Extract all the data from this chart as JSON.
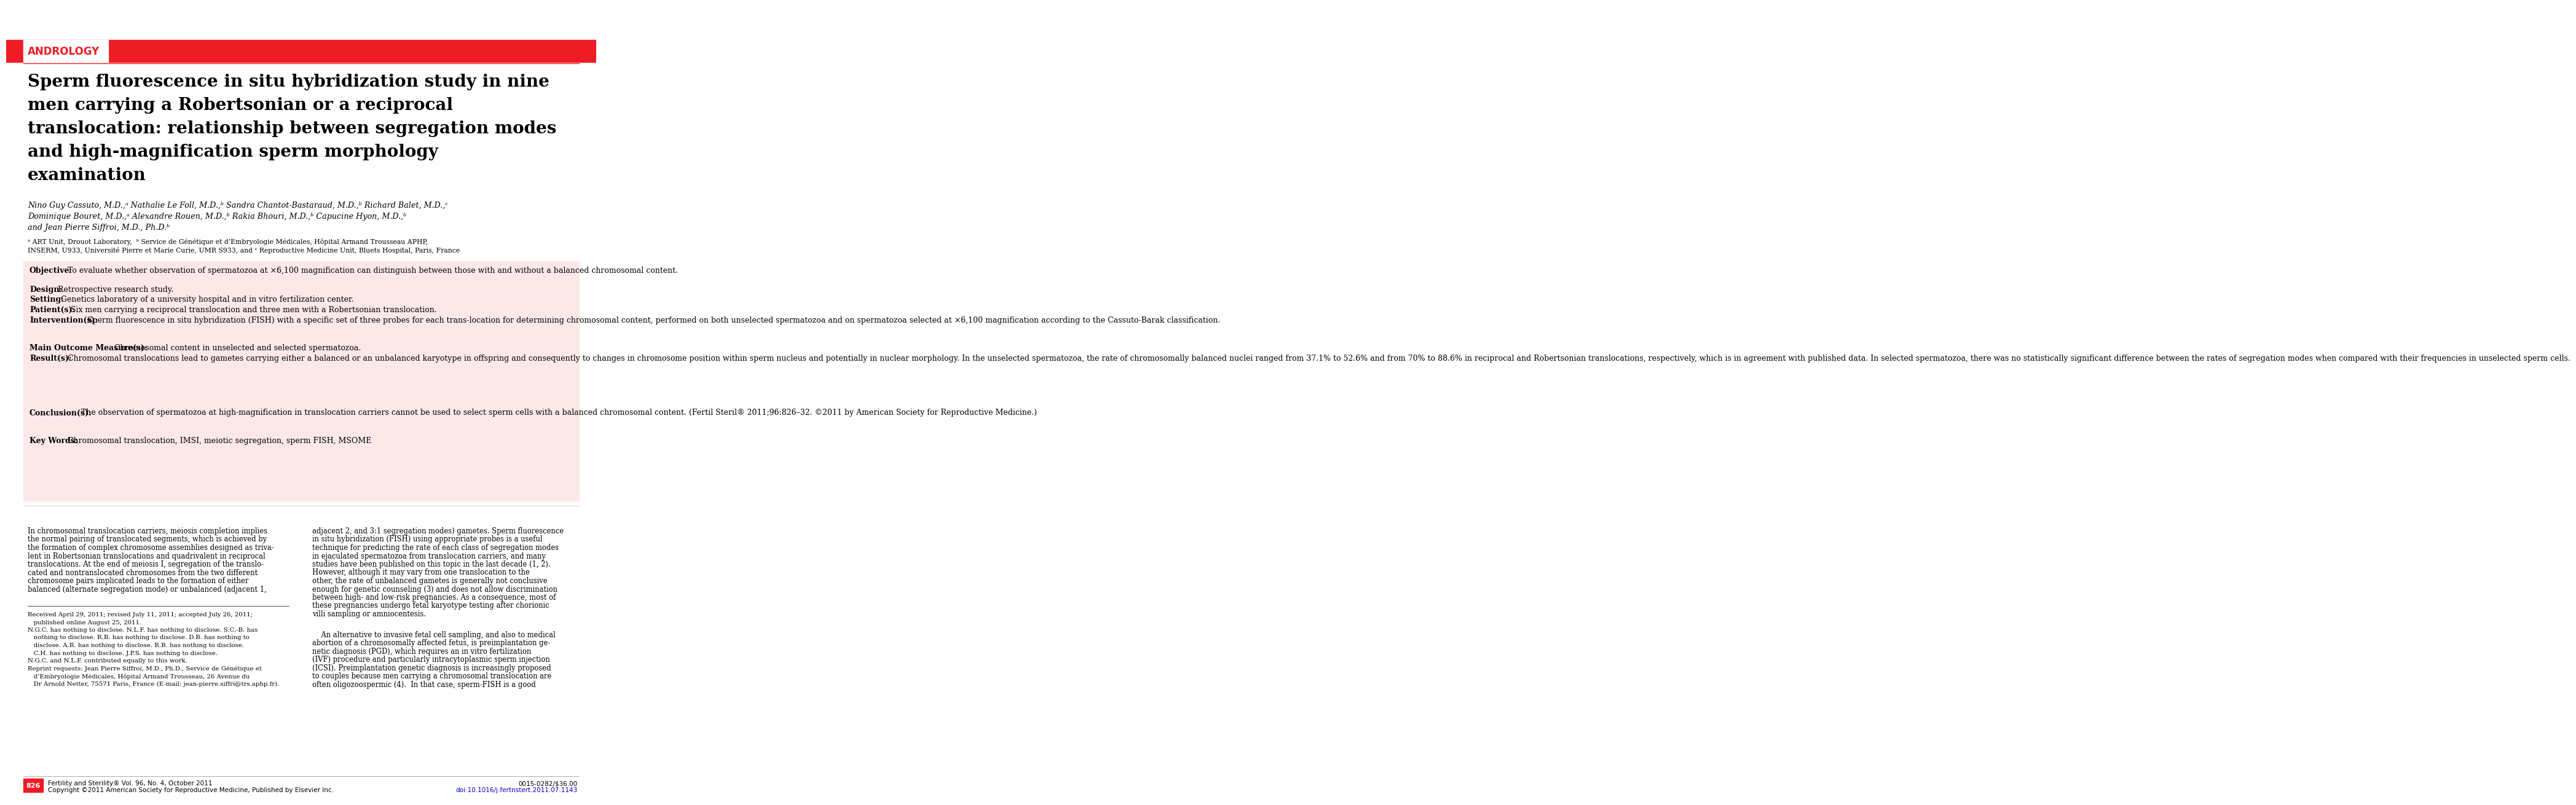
{
  "bg_color": "#ffffff",
  "red_color": "#EE1C25",
  "pink_bg": "#fce8e8",
  "andrology_label": "ANDROLOGY",
  "title_line1": "Sperm fluorescence in situ hybridization study in nine",
  "title_line2": "men carrying a Robertsonian or a reciprocal",
  "title_line3": "translocation: relationship between segregation modes",
  "title_line4": "and high-magnification sperm morphology",
  "title_line5": "examination",
  "authors_line1": "Nino Guy Cassuto, M.D.,ᵃ Nathalie Le Foll, M.D.,ᵇ Sandra Chantot-Bastaraud, M.D.,ᵇ Richard Balet, M.D.,ᶜ",
  "authors_line2": "Dominique Bouret, M.D.,ᵃ Alexandre Rouen, M.D.,ᵇ Rakia Bhouri, M.D.,ᵇ Capucine Hyon, M.D.,ᵇ",
  "authors_line3": "and Jean Pierre Siffroi, M.D., Ph.D.ᵇ",
  "affil1": "ᵃ ART Unit, Drouot Laboratory,  ᵇ Service de Génétique et d’Embryologie Médicales, Hôpital Armand Trousseau APHP,",
  "affil2": "INSERM, U933, Université Pierre et Marie Curie, UMR S933, and ᶜ Reproductive Medicine Unit, Bluets Hospital, Paris, France",
  "abstract_sections": [
    {
      "bold": "Objective:",
      "text": "  To evaluate whether observation of spermatozoa at ×6,100 magnification can distinguish between those with and without a balanced chromosomal content."
    },
    {
      "bold": "Design:",
      "text": "  Retrospective research study."
    },
    {
      "bold": "Setting:",
      "text": "  Genetics laboratory of a university hospital and in vitro fertilization center."
    },
    {
      "bold": "Patient(s):",
      "text": "  Six men carrying a reciprocal translocation and three men with a Robertsonian translocation."
    },
    {
      "bold": "Intervention(s):",
      "text": "  Sperm fluorescence in situ hybridization (FISH) with a specific set of three probes for each trans-location for determining chromosomal content, performed on both unselected spermatozoa and on spermatozoa selected at ×6,100 magnification according to the Cassuto-Barak classification."
    },
    {
      "bold": "Main Outcome Measure(s):",
      "text": "  Chromosomal content in unselected and selected spermatozoa."
    },
    {
      "bold": "Result(s):",
      "text": "  Chromosomal translocations lead to gametes carrying either a balanced or an unbalanced karyotype in offspring and consequently to changes in chromosome position within sperm nucleus and potentially in nuclear morphology. In the unselected spermatozoa, the rate of chromosomally balanced nuclei ranged from 37.1% to 52.6% and from 70% to 88.6% in reciprocal and Robertsonian translocations, respectively, which is in agreement with published data. In selected spermatozoa, there was no statistically significant difference between the rates of segregation modes when compared with their frequencies in unselected sperm cells."
    },
    {
      "bold": "Conclusion(s):",
      "text": "  The observation of spermatozoa at high-magnification in translocation carriers cannot be used to select sperm cells with a balanced chromosomal content. (Fertil Steril® 2011;96:826–32. ©2011 by American Society for Reproductive Medicine.)"
    },
    {
      "bold": "Key Words:",
      "text": "  Chromosomal translocation, IMSI, meiotic segregation, sperm FISH, MSOME"
    }
  ],
  "body_col1_lines": [
    "In chromosomal translocation carriers, meiosis completion implies",
    "the normal pairing of translocated segments, which is achieved by",
    "the formation of complex chromosome assemblies designed as triva-",
    "lent in Robertsonian translocations and quadrivalent in reciprocal",
    "translocations. At the end of meiosis I, segregation of the translo-",
    "cated and nontranslocated chromosomes from the two different",
    "chromosome pairs implicated leads to the formation of either",
    "balanced (alternate segregation mode) or unbalanced (adjacent 1,"
  ],
  "body_col2_lines": [
    "adjacent 2, and 3:1 segregation modes) gametes. Sperm fluorescence",
    "in situ hybridization (FISH) using appropriate probes is a useful",
    "technique for predicting the rate of each class of segregation modes",
    "in ejaculated spermatozoa from translocation carriers, and many",
    "studies have been published on this topic in the last decade (1, 2).",
    "However, although it may vary from one translocation to the",
    "other, the rate of unbalanced gametes is generally not conclusive",
    "enough for genetic counseling (3) and does not allow discrimination",
    "between high- and low-risk pregnancies. As a consequence, most of",
    "these pregnancies undergo fetal karyotype testing after chorionic",
    "villi sampling or amniocentesis."
  ],
  "body_col2b_lines": [
    "    An alternative to invasive fetal cell sampling, and also to medical",
    "abortion of a chromosomally affected fetus, is preimplantation ge-",
    "netic diagnosis (PGD), which requires an in vitro fertilization",
    "(IVF) procedure and particularly intracytoplasmic sperm injection",
    "(ICSI). Preimplantation genetic diagnosis is increasingly proposed",
    "to couples because men carrying a chromosomal translocation are",
    "often oligozoospermic (4).  In that case, sperm-FISH is a good"
  ],
  "footnote1": "Received April 29, 2011; revised July 11, 2011; accepted July 26, 2011;",
  "footnote1b": "   published online August 25, 2011.",
  "footnote2a": "N.G.C. has nothing to disclose. N.L.F. has nothing to disclose. S.C.-B. has",
  "footnote2b": "   nothing to disclose. R.B. has nothing to disclose. D.B. has nothing to",
  "footnote2c": "   disclose. A.R. has nothing to disclose. R.B. has nothing to disclose.",
  "footnote2d": "   C.H. has nothing to disclose. J.P.S. has nothing to disclose.",
  "footnote3": "N.G.C. and N.L.F. contributed equally to this work.",
  "footnote4a": "Reprint requests: Jean Pierre Siffroi, M.D., Ph.D., Service de Génétique et",
  "footnote4b": "   d’Embryologie Médicales, Hôpital Armand Trousseau, 26 Avenue du",
  "footnote4c": "   Dr Arnold Netter, 75571 Paris, France (E-mail: jean-pierre.siffri@trs.aphp.fr).",
  "page_num": "826",
  "journal_line1": "Fertility and Sterility® Vol. 96, No. 4, October 2011",
  "journal_line2": "Copyright ©2011 American Society for Reproductive Medicine, Published by Elsevier Inc.",
  "issn": "0015-0282/$36.00",
  "doi": "doi:10.1016/j.fertnstert.2011.07.1143"
}
